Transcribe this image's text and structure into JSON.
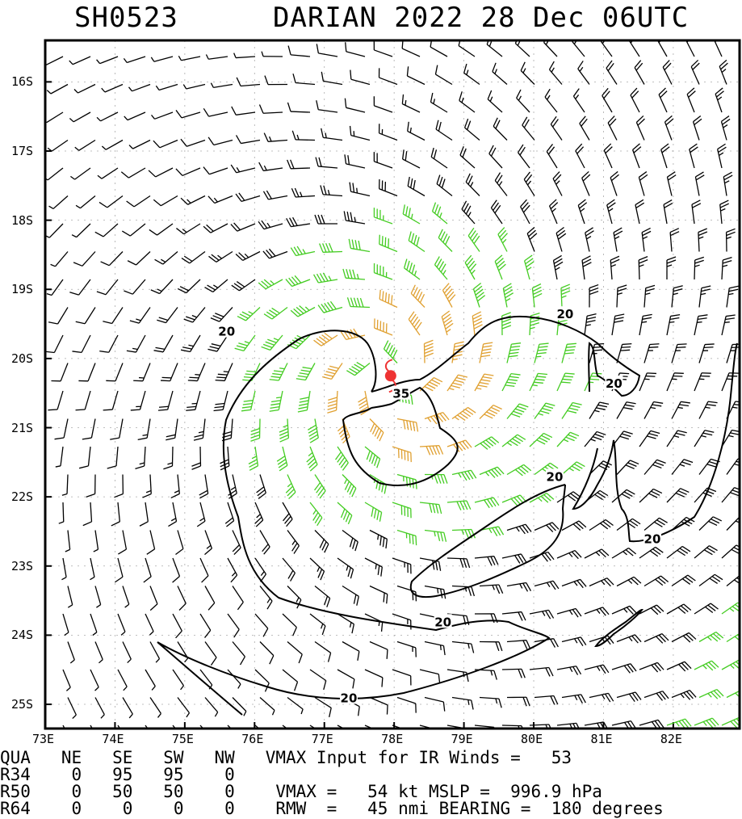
{
  "header": {
    "storm_id": "SH0523",
    "title": "DARIAN 2022 28 Dec 06UTC"
  },
  "map": {
    "lat_range": [
      -25.35,
      -15.4
    ],
    "lon_range": [
      73.0,
      82.95
    ],
    "lat_ticks": [
      {
        "value": -16,
        "label": "16S"
      },
      {
        "value": -17,
        "label": "17S"
      },
      {
        "value": -18,
        "label": "18S"
      },
      {
        "value": -19,
        "label": "19S"
      },
      {
        "value": -20,
        "label": "20S"
      },
      {
        "value": -21,
        "label": "21S"
      },
      {
        "value": -22,
        "label": "22S"
      },
      {
        "value": -23,
        "label": "23S"
      },
      {
        "value": -24,
        "label": "24S"
      },
      {
        "value": -25,
        "label": "25S"
      }
    ],
    "lon_ticks": [
      {
        "value": 73,
        "label": "73E"
      },
      {
        "value": 74,
        "label": "74E"
      },
      {
        "value": 75,
        "label": "75E"
      },
      {
        "value": 76,
        "label": "76E"
      },
      {
        "value": 77,
        "label": "77E"
      },
      {
        "value": 78,
        "label": "78E"
      },
      {
        "value": 79,
        "label": "79E"
      },
      {
        "value": 80,
        "label": "80E"
      },
      {
        "value": 81,
        "label": "81E"
      },
      {
        "value": 82,
        "label": "82E"
      }
    ],
    "storm_center": {
      "lat": -20.25,
      "lon": 77.95
    },
    "contour_labels": [
      {
        "text": "20",
        "lat": -19.6,
        "lon": 75.6
      },
      {
        "text": "20",
        "lat": -19.35,
        "lon": 80.45
      },
      {
        "text": "20",
        "lat": -20.35,
        "lon": 81.15
      },
      {
        "text": "35",
        "lat": -20.5,
        "lon": 78.1
      },
      {
        "text": "20",
        "lat": -21.7,
        "lon": 80.3
      },
      {
        "text": "20",
        "lat": -22.6,
        "lon": 81.7
      },
      {
        "text": "20",
        "lat": -23.8,
        "lon": 78.7
      },
      {
        "text": "20",
        "lat": -24.9,
        "lon": 77.35
      }
    ],
    "colors": {
      "below_34kt": "#000000",
      "34_to_49kt": "#44cc22",
      "50_to_63kt": "#e0a030",
      "storm_symbol": "#ee3333",
      "contour": "#000000",
      "grid": "#aaaaaa"
    }
  },
  "info_table": {
    "header": "QUA   NE   SE   SW   NW   VMAX Input for IR Winds =   53",
    "rows": [
      "R34    0   95   95    0",
      "R50    0   50   50    0    VMAX =   54 kt MSLP =  996.9 hPa",
      "R64    0    0    0    0    RMW  =   45 nmi BEARING =  180 degrees"
    ]
  }
}
